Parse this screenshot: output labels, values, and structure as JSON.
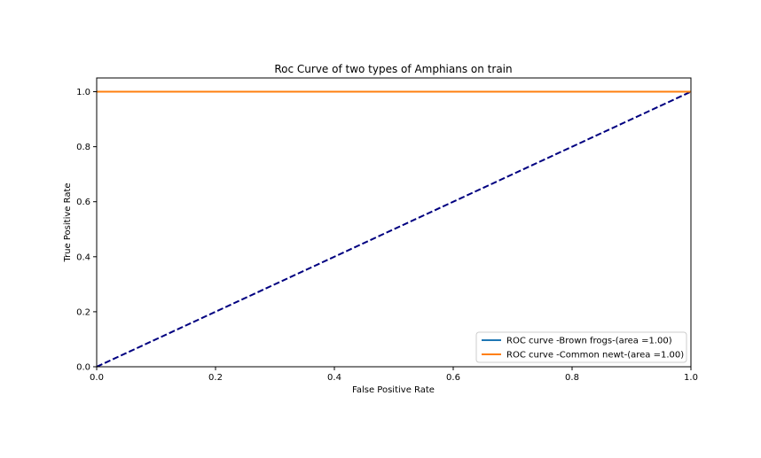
{
  "chart_data": {
    "type": "line",
    "title": "Roc Curve of two types of Amphians on train",
    "xlabel": "False Positive Rate",
    "ylabel": "True Positive Rate",
    "xlim": [
      0.0,
      1.0
    ],
    "ylim": [
      0.0,
      1.05
    ],
    "xticks": [
      0.0,
      0.2,
      0.4,
      0.6,
      0.8,
      1.0
    ],
    "xtick_labels": [
      "0.0",
      "0.2",
      "0.4",
      "0.6",
      "0.8",
      "1.0"
    ],
    "yticks": [
      0.0,
      0.2,
      0.4,
      0.6,
      0.8,
      1.0
    ],
    "ytick_labels": [
      "0.0",
      "0.2",
      "0.4",
      "0.6",
      "0.8",
      "1.0"
    ],
    "grid": false,
    "legend_position": "lower-right",
    "series": [
      {
        "name": "ROC curve -Brown frogs-(area =1.00)",
        "x": [
          0.0,
          1.0
        ],
        "y": [
          1.0,
          1.0
        ],
        "color": "#1f77b4",
        "style": "solid"
      },
      {
        "name": "ROC curve -Common newt-(area =1.00)",
        "x": [
          0.0,
          1.0
        ],
        "y": [
          1.0,
          1.0
        ],
        "color": "#ff7f0e",
        "style": "solid"
      }
    ],
    "reference_line": {
      "x": [
        0.0,
        1.0
      ],
      "y": [
        0.0,
        1.0
      ],
      "color": "#000080",
      "style": "dashed"
    }
  }
}
